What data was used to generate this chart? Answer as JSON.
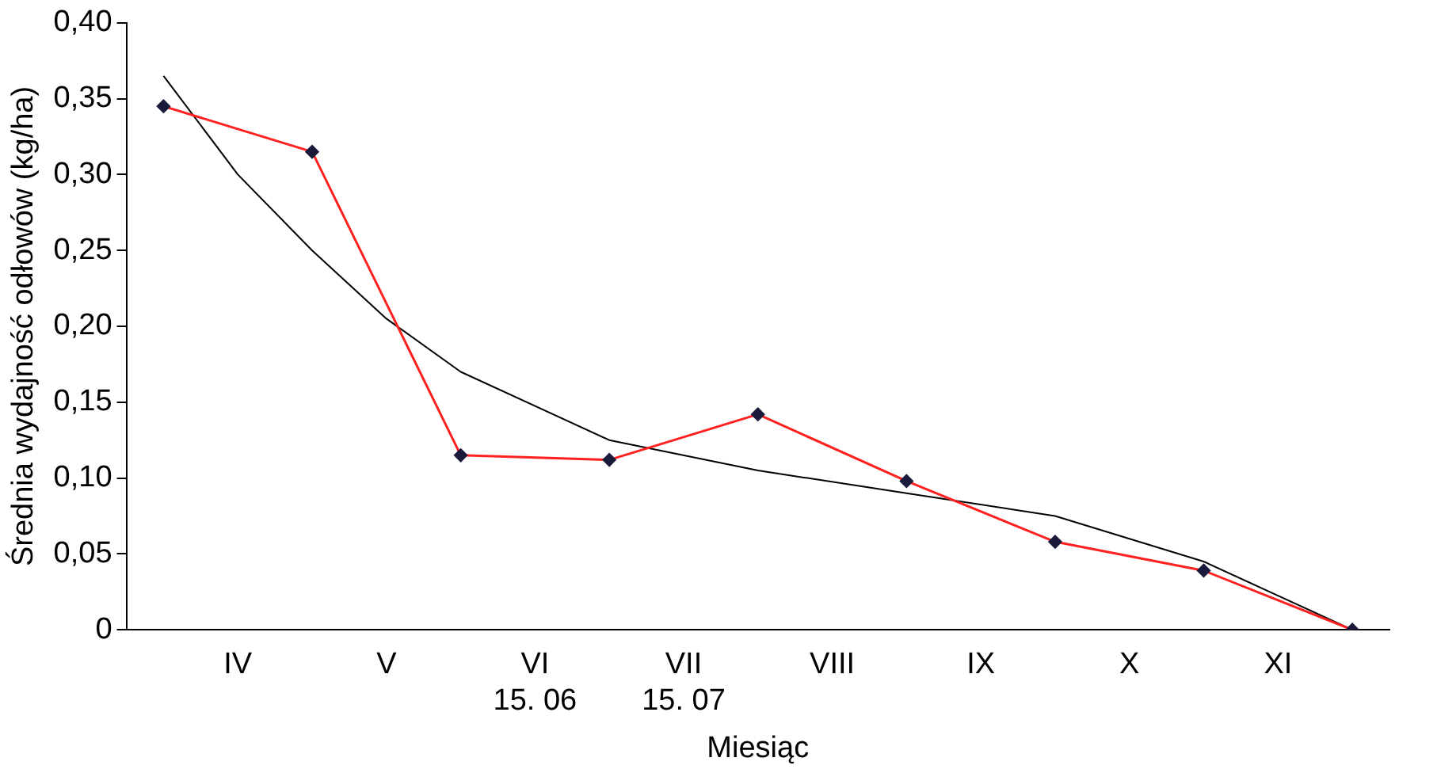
{
  "chart_data": {
    "type": "line",
    "xlabel": "Miesiąc",
    "ylabel": "Średnia wydajność odłowów (kg/ha)",
    "categories": [
      null,
      "IV",
      null,
      "V",
      null,
      "VI\n15. 06",
      null,
      "VII\n15. 07",
      null,
      "VIII",
      null,
      "IX",
      null,
      "X",
      null,
      "XI",
      null
    ],
    "ylim": [
      0,
      0.4
    ],
    "yticks": [
      0,
      {
        "value": 0.05,
        "label": "0,05"
      },
      {
        "value": 0.1,
        "label": "0,10"
      },
      {
        "value": 0.15,
        "label": "0,15"
      },
      {
        "value": 0.2,
        "label": "0,20"
      },
      {
        "value": 0.25,
        "label": "0,25"
      },
      {
        "value": 0.3,
        "label": "0,30"
      },
      {
        "value": 0.35,
        "label": "0,35"
      },
      {
        "value": 0.4,
        "label": "0,40"
      }
    ],
    "grid": false,
    "legend": false,
    "series": [
      {
        "color": "#ff2020",
        "marker": "diamond",
        "values": [
          0.345,
          null,
          0.315,
          null,
          0.115,
          null,
          0.112,
          null,
          0.142,
          null,
          0.098,
          null,
          0.058,
          null,
          0.039,
          null,
          0.0
        ]
      },
      {
        "color": "#000000",
        "marker": "none",
        "values": [
          0.365,
          0.3,
          0.25,
          0.205,
          0.17,
          null,
          0.125,
          null,
          0.105,
          null,
          0.09,
          null,
          0.075,
          null,
          0.045,
          null,
          0.0
        ]
      }
    ]
  }
}
